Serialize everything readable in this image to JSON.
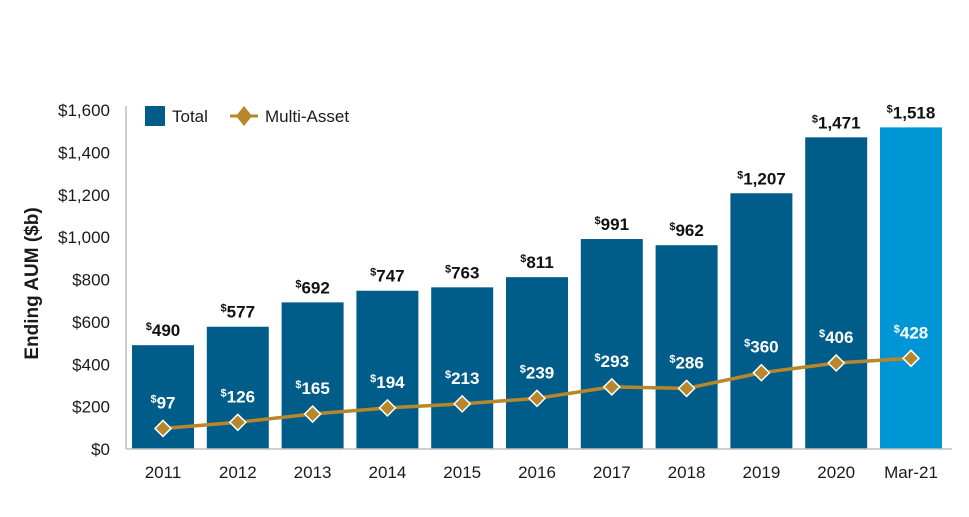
{
  "chart_data": {
    "type": "bar",
    "title": "",
    "xlabel": "",
    "ylabel": "Ending AUM ($b)",
    "ylim": [
      0,
      1600
    ],
    "yticks": [
      0,
      200,
      400,
      600,
      800,
      1000,
      1200,
      1400,
      1600
    ],
    "ytick_labels": [
      "$0",
      "$200",
      "$400",
      "$600",
      "$800",
      "$1,000",
      "$1,200",
      "$1,400",
      "$1,600"
    ],
    "categories": [
      "2011",
      "2012",
      "2013",
      "2014",
      "2015",
      "2016",
      "2017",
      "2018",
      "2019",
      "2020",
      "Mar-21"
    ],
    "legend_position": "top-left",
    "series": [
      {
        "name": "Total",
        "type": "bar",
        "color": "#005d8a",
        "highlight_color": "#0096d6",
        "highlight_category": "Mar-21",
        "values": [
          490,
          577,
          692,
          747,
          763,
          811,
          991,
          962,
          1207,
          1471,
          1518
        ],
        "labels": [
          "490",
          "577",
          "692",
          "747",
          "763",
          "811",
          "991",
          "962",
          "1,207",
          "1,471",
          "1,518"
        ]
      },
      {
        "name": "Multi-Asset",
        "type": "line",
        "color": "#b8862b",
        "values": [
          97,
          126,
          165,
          194,
          213,
          239,
          293,
          286,
          360,
          406,
          428
        ],
        "labels": [
          "97",
          "126",
          "165",
          "194",
          "213",
          "239",
          "293",
          "286",
          "360",
          "406",
          "428"
        ]
      }
    ],
    "label_prefix": "$",
    "grid": false
  }
}
